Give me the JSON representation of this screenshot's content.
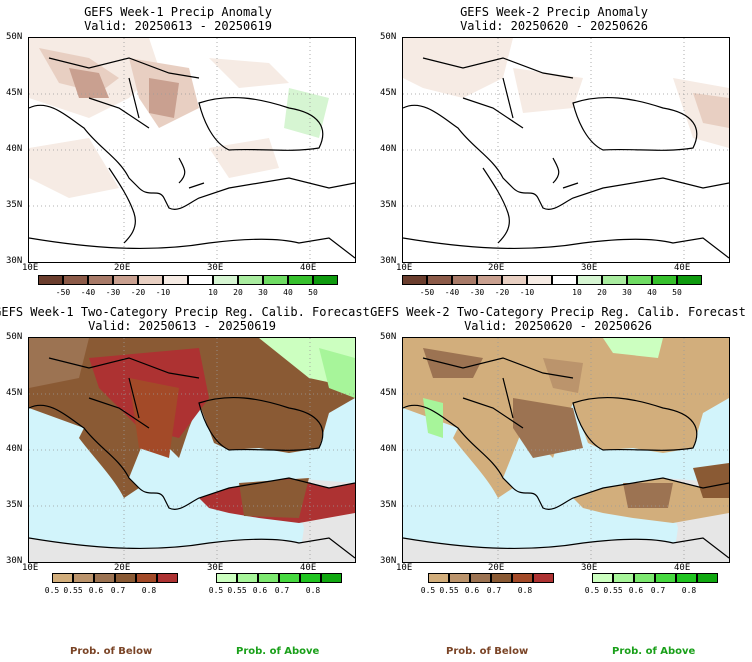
{
  "panels": [
    {
      "title_line1": "GEFS Week-1 Precip Anomaly",
      "title_line2": "Valid: 20250613 - 20250619"
    },
    {
      "title_line1": "GEFS Week-2 Precip Anomaly",
      "title_line2": "Valid: 20250620 - 20250626"
    },
    {
      "title_line1": "GEFS Week-1 Two-Category Precip Reg. Calib. Forecast",
      "title_line2": "Valid: 20250613 - 20250619"
    },
    {
      "title_line1": "GEFS Week-2 Two-Category Precip Reg. Calib. Forecast",
      "title_line2": "Valid: 20250620 - 20250626"
    }
  ],
  "lat_ticks": [
    "50N",
    "45N",
    "40N",
    "35N",
    "30N"
  ],
  "lon_ticks": [
    "10E",
    "20E",
    "30E",
    "40E"
  ],
  "anomaly_colorbar": {
    "labels": [
      "-50",
      "-40",
      "-30",
      "-20",
      "-10",
      "10",
      "20",
      "30",
      "40",
      "50"
    ],
    "colors": [
      "#6b3e2e",
      "#8c5a48",
      "#a87a68",
      "#c9a090",
      "#e8cfc2",
      "#f6ebe4",
      "#ffffff",
      "#d6f5d2",
      "#a9ec9f",
      "#6fdc63",
      "#36c02c",
      "#0e9a0e"
    ]
  },
  "prob_below_colorbar": {
    "labels": [
      "0.5",
      "0.55",
      "0.6",
      "0.7",
      "0.8"
    ],
    "colors": [
      "#d2ae7c",
      "#bb946c",
      "#9c7352",
      "#8a5a34",
      "#a34a28",
      "#ad3232"
    ]
  },
  "prob_above_colorbar": {
    "labels": [
      "0.5",
      "0.55",
      "0.6",
      "0.7",
      "0.8"
    ],
    "colors": [
      "#ccffc0",
      "#a7f59a",
      "#7de870",
      "#47d940",
      "#20c420",
      "#10a810"
    ]
  },
  "footer": {
    "below_label": "Prob. of Below",
    "above_label": "Prob. of Above"
  },
  "colors": {
    "sea": "#d2f4fb",
    "land_gray": "#e6e6e6",
    "below_label": "#7a4426",
    "above_label": "#1aa01a"
  }
}
